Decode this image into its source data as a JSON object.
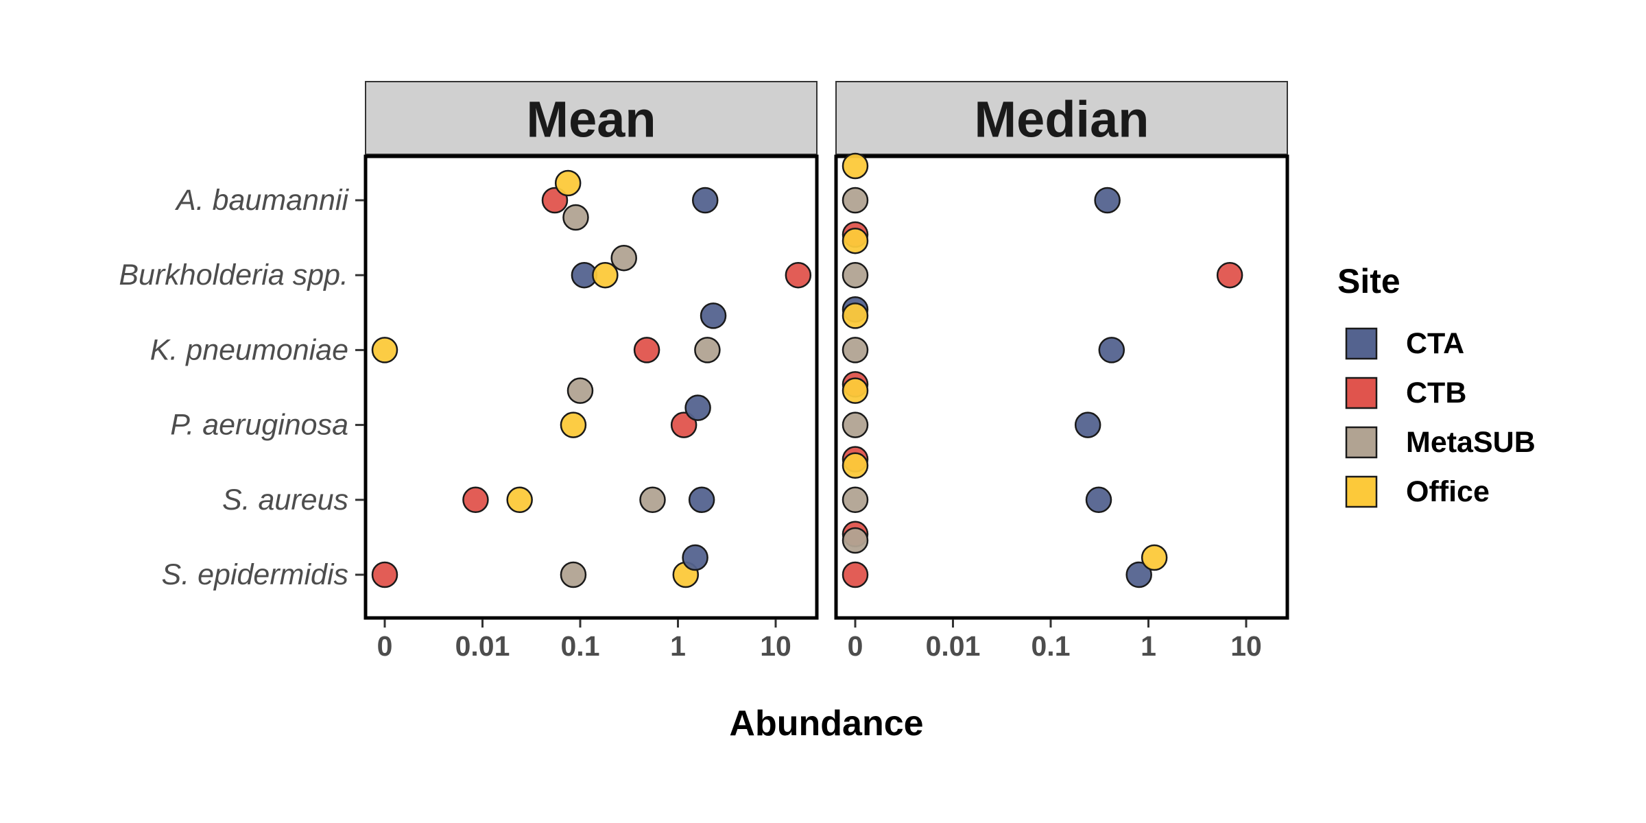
{
  "chart_data": {
    "type": "scatter",
    "x_scale": "log10 with zero (pseudo-log)",
    "xlabel": "Abundance",
    "x_ticks": [
      "0",
      "0.01",
      "0.1",
      "1",
      "10"
    ],
    "y_categories": [
      "A. baumannii",
      "Burkholderia spp.",
      "K. pneumoniae",
      "P. aeruginosa",
      "S. aureus",
      "S. epidermidis"
    ],
    "legend": {
      "title": "Site",
      "position": "right",
      "entries": [
        {
          "name": "CTA",
          "color": "#54638f"
        },
        {
          "name": "CTB",
          "color": "#e0544d"
        },
        {
          "name": "MetaSUB",
          "color": "#b1a392"
        },
        {
          "name": "Office",
          "color": "#fcc93a"
        }
      ]
    },
    "panels": [
      {
        "title": "Mean",
        "points": [
          {
            "category": "A. baumannii",
            "site": "CTB",
            "x": 0.055
          },
          {
            "category": "A. baumannii",
            "site": "Office",
            "x": 0.075
          },
          {
            "category": "A. baumannii",
            "site": "MetaSUB",
            "x": 0.09
          },
          {
            "category": "A. baumannii",
            "site": "CTA",
            "x": 1.9
          },
          {
            "category": "Burkholderia spp.",
            "site": "CTA",
            "x": 0.11
          },
          {
            "category": "Burkholderia spp.",
            "site": "Office",
            "x": 0.18
          },
          {
            "category": "Burkholderia spp.",
            "site": "MetaSUB",
            "x": 0.28
          },
          {
            "category": "Burkholderia spp.",
            "site": "CTB",
            "x": 17
          },
          {
            "category": "K. pneumoniae",
            "site": "Office",
            "x": 0
          },
          {
            "category": "K. pneumoniae",
            "site": "CTB",
            "x": 0.48
          },
          {
            "category": "K. pneumoniae",
            "site": "MetaSUB",
            "x": 2.0
          },
          {
            "category": "K. pneumoniae",
            "site": "CTA",
            "x": 2.3
          },
          {
            "category": "P. aeruginosa",
            "site": "Office",
            "x": 0.085
          },
          {
            "category": "P. aeruginosa",
            "site": "MetaSUB",
            "x": 0.1
          },
          {
            "category": "P. aeruginosa",
            "site": "CTB",
            "x": 1.15
          },
          {
            "category": "P. aeruginosa",
            "site": "CTA",
            "x": 1.6
          },
          {
            "category": "S. aureus",
            "site": "CTB",
            "x": 0.0085
          },
          {
            "category": "S. aureus",
            "site": "Office",
            "x": 0.024
          },
          {
            "category": "S. aureus",
            "site": "MetaSUB",
            "x": 0.55
          },
          {
            "category": "S. aureus",
            "site": "CTA",
            "x": 1.75
          },
          {
            "category": "S. epidermidis",
            "site": "CTB",
            "x": 0
          },
          {
            "category": "S. epidermidis",
            "site": "MetaSUB",
            "x": 0.085
          },
          {
            "category": "S. epidermidis",
            "site": "Office",
            "x": 1.2
          },
          {
            "category": "S. epidermidis",
            "site": "CTA",
            "x": 1.5
          }
        ]
      },
      {
        "title": "Median",
        "points": [
          {
            "category": "A. baumannii",
            "site": "MetaSUB",
            "x": 0
          },
          {
            "category": "A. baumannii",
            "site": "Office",
            "x": 0
          },
          {
            "category": "A. baumannii",
            "site": "CTB",
            "x": 0
          },
          {
            "category": "A. baumannii",
            "site": "CTA",
            "x": 0.38
          },
          {
            "category": "Burkholderia spp.",
            "site": "MetaSUB",
            "x": 0
          },
          {
            "category": "Burkholderia spp.",
            "site": "Office",
            "x": 0
          },
          {
            "category": "Burkholderia spp.",
            "site": "CTA",
            "x": 0
          },
          {
            "category": "Burkholderia spp.",
            "site": "CTB",
            "x": 6.8
          },
          {
            "category": "K. pneumoniae",
            "site": "MetaSUB",
            "x": 0
          },
          {
            "category": "K. pneumoniae",
            "site": "Office",
            "x": 0
          },
          {
            "category": "K. pneumoniae",
            "site": "CTB",
            "x": 0
          },
          {
            "category": "K. pneumoniae",
            "site": "CTA",
            "x": 0.42
          },
          {
            "category": "P. aeruginosa",
            "site": "MetaSUB",
            "x": 0
          },
          {
            "category": "P. aeruginosa",
            "site": "Office",
            "x": 0
          },
          {
            "category": "P. aeruginosa",
            "site": "CTB",
            "x": 0
          },
          {
            "category": "P. aeruginosa",
            "site": "CTA",
            "x": 0.24
          },
          {
            "category": "S. aureus",
            "site": "MetaSUB",
            "x": 0
          },
          {
            "category": "S. aureus",
            "site": "Office",
            "x": 0
          },
          {
            "category": "S. aureus",
            "site": "CTB",
            "x": 0
          },
          {
            "category": "S. aureus",
            "site": "CTA",
            "x": 0.31
          },
          {
            "category": "S. epidermidis",
            "site": "CTB",
            "x": 0
          },
          {
            "category": "S. epidermidis",
            "site": "MetaSUB",
            "x": 0
          },
          {
            "category": "S. epidermidis",
            "site": "CTA",
            "x": 0.8
          },
          {
            "category": "S. epidermidis",
            "site": "Office",
            "x": 1.15
          }
        ]
      }
    ]
  }
}
